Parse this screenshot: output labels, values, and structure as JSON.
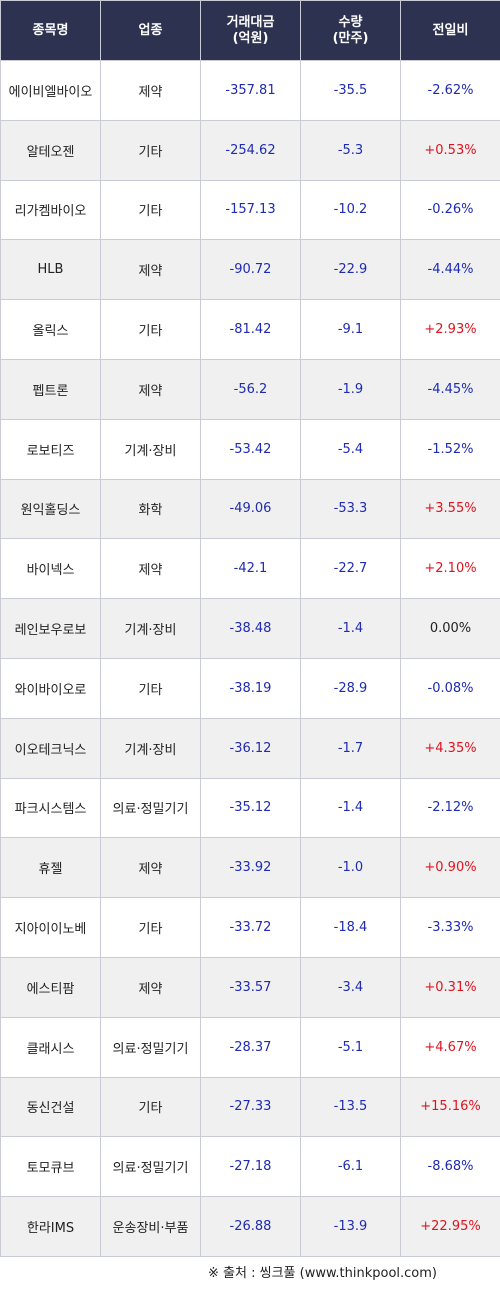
{
  "table": {
    "headers": [
      "종목명",
      "업종",
      "거래대금\n(억원)",
      "수량\n(만주)",
      "전일비"
    ],
    "rows": [
      {
        "name": "에이비엘바이오",
        "sector": "제약",
        "amount": "-357.81",
        "qty": "-35.5",
        "change": "-2.62%"
      },
      {
        "name": "알테오젠",
        "sector": "기타",
        "amount": "-254.62",
        "qty": "-5.3",
        "change": "+0.53%"
      },
      {
        "name": "리가켐바이오",
        "sector": "기타",
        "amount": "-157.13",
        "qty": "-10.2",
        "change": "-0.26%"
      },
      {
        "name": "HLB",
        "sector": "제약",
        "amount": "-90.72",
        "qty": "-22.9",
        "change": "-4.44%"
      },
      {
        "name": "올릭스",
        "sector": "기타",
        "amount": "-81.42",
        "qty": "-9.1",
        "change": "+2.93%"
      },
      {
        "name": "펩트론",
        "sector": "제약",
        "amount": "-56.2",
        "qty": "-1.9",
        "change": "-4.45%"
      },
      {
        "name": "로보티즈",
        "sector": "기계·장비",
        "amount": "-53.42",
        "qty": "-5.4",
        "change": "-1.52%"
      },
      {
        "name": "원익홀딩스",
        "sector": "화학",
        "amount": "-49.06",
        "qty": "-53.3",
        "change": "+3.55%"
      },
      {
        "name": "바이넥스",
        "sector": "제약",
        "amount": "-42.1",
        "qty": "-22.7",
        "change": "+2.10%"
      },
      {
        "name": "레인보우로보",
        "sector": "기계·장비",
        "amount": "-38.48",
        "qty": "-1.4",
        "change": "0.00%"
      },
      {
        "name": "와이바이오로",
        "sector": "기타",
        "amount": "-38.19",
        "qty": "-28.9",
        "change": "-0.08%"
      },
      {
        "name": "이오테크닉스",
        "sector": "기계·장비",
        "amount": "-36.12",
        "qty": "-1.7",
        "change": "+4.35%"
      },
      {
        "name": "파크시스템스",
        "sector": "의료·정밀기기",
        "amount": "-35.12",
        "qty": "-1.4",
        "change": "-2.12%"
      },
      {
        "name": "휴젤",
        "sector": "제약",
        "amount": "-33.92",
        "qty": "-1.0",
        "change": "+0.90%"
      },
      {
        "name": "지아이이노베",
        "sector": "기타",
        "amount": "-33.72",
        "qty": "-18.4",
        "change": "-3.33%"
      },
      {
        "name": "에스티팜",
        "sector": "제약",
        "amount": "-33.57",
        "qty": "-3.4",
        "change": "+0.31%"
      },
      {
        "name": "클래시스",
        "sector": "의료·정밀기기",
        "amount": "-28.37",
        "qty": "-5.1",
        "change": "+4.67%"
      },
      {
        "name": "동신건설",
        "sector": "기타",
        "amount": "-27.33",
        "qty": "-13.5",
        "change": "+15.16%"
      },
      {
        "name": "토모큐브",
        "sector": "의료·정밀기기",
        "amount": "-27.18",
        "qty": "-6.1",
        "change": "-8.68%"
      },
      {
        "name": "한라IMS",
        "sector": "운송장비·부품",
        "amount": "-26.88",
        "qty": "-13.9",
        "change": "+22.95%"
      }
    ]
  },
  "source": "※ 출처 : 씽크풀 (www.thinkpool.com)",
  "colors": {
    "header_bg": "#2d3250",
    "negative": "#1f2bb0",
    "positive": "#e0141e",
    "stripe": "#f0f0f0"
  }
}
